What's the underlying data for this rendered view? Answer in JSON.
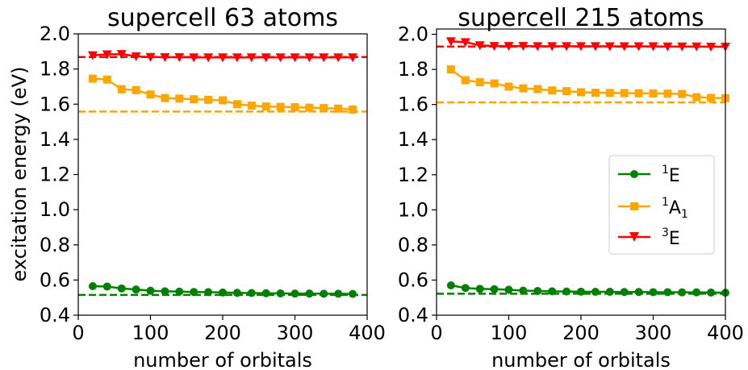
{
  "chart_data": [
    {
      "type": "line",
      "title": "supercell 63 atoms",
      "xlabel": "number of orbitals",
      "ylabel": "excitation energy (eV)",
      "xlim": [
        0,
        400
      ],
      "ylim": [
        0.4,
        2.0
      ],
      "xticks": [
        "0",
        "100",
        "200",
        "300",
        "400"
      ],
      "yticks": [
        "0.4",
        "0.6",
        "0.8",
        "1.0",
        "1.2",
        "1.4",
        "1.6",
        "1.8",
        "2.0"
      ],
      "grid": false,
      "x": [
        20,
        40,
        60,
        80,
        100,
        120,
        140,
        160,
        180,
        200,
        220,
        240,
        260,
        280,
        300,
        320,
        340,
        360,
        380
      ],
      "series": [
        {
          "name": "1E",
          "color": "#008000",
          "marker": "circle",
          "values": [
            0.565,
            0.563,
            0.552,
            0.546,
            0.539,
            0.536,
            0.534,
            0.532,
            0.531,
            0.529,
            0.527,
            0.526,
            0.525,
            0.524,
            0.523,
            0.523,
            0.522,
            0.522,
            0.521
          ],
          "reference": 0.515
        },
        {
          "name": "1A1",
          "color": "#ffa500",
          "marker": "square",
          "values": [
            1.745,
            1.74,
            1.685,
            1.68,
            1.655,
            1.635,
            1.632,
            1.628,
            1.625,
            1.622,
            1.6,
            1.592,
            1.587,
            1.585,
            1.583,
            1.58,
            1.578,
            1.575,
            1.57
          ],
          "reference": 1.558
        },
        {
          "name": "3E",
          "color": "#ff0000",
          "marker": "triangle-down",
          "values": [
            1.878,
            1.883,
            1.885,
            1.872,
            1.868,
            1.867,
            1.867,
            1.866,
            1.866,
            1.866,
            1.866,
            1.866,
            1.866,
            1.866,
            1.866,
            1.866,
            1.866,
            1.866,
            1.866
          ],
          "reference": 1.868
        }
      ]
    },
    {
      "type": "line",
      "title": "supercell 215 atoms",
      "xlabel": "number of orbitals",
      "ylabel": "",
      "xlim": [
        0,
        400
      ],
      "ylim": [
        0.4,
        2.03
      ],
      "xticks": [
        "0",
        "100",
        "200",
        "300",
        "400"
      ],
      "yticks": [
        "0.4",
        "0.6",
        "0.8",
        "1.0",
        "1.2",
        "1.4",
        "1.6",
        "1.8",
        "2.0"
      ],
      "grid": false,
      "legend": {
        "position": "center-right",
        "entries": [
          "1E",
          "1A1",
          "3E"
        ]
      },
      "x": [
        20,
        40,
        60,
        80,
        100,
        120,
        140,
        160,
        180,
        200,
        220,
        240,
        260,
        280,
        300,
        320,
        340,
        360,
        380,
        400
      ],
      "series": [
        {
          "name": "1E",
          "color": "#008000",
          "marker": "circle",
          "values": [
            0.57,
            0.555,
            0.55,
            0.548,
            0.545,
            0.54,
            0.538,
            0.536,
            0.535,
            0.534,
            0.533,
            0.533,
            0.532,
            0.532,
            0.531,
            0.531,
            0.53,
            0.53,
            0.529,
            0.528
          ],
          "reference": 0.522
        },
        {
          "name": "1A1",
          "color": "#ffa500",
          "marker": "square",
          "values": [
            1.8,
            1.738,
            1.727,
            1.72,
            1.702,
            1.692,
            1.688,
            1.68,
            1.676,
            1.67,
            1.667,
            1.666,
            1.665,
            1.664,
            1.663,
            1.662,
            1.66,
            1.642,
            1.638,
            1.636
          ],
          "reference": 1.612
        },
        {
          "name": "3E",
          "color": "#ff0000",
          "marker": "triangle-down",
          "values": [
            1.96,
            1.955,
            1.937,
            1.933,
            1.933,
            1.933,
            1.932,
            1.932,
            1.932,
            1.932,
            1.932,
            1.931,
            1.931,
            1.931,
            1.931,
            1.93,
            1.93,
            1.93,
            1.929,
            1.929
          ],
          "reference": 1.93
        }
      ]
    }
  ],
  "legend_labels": {
    "e1": {
      "sup": "1",
      "main": "E",
      "sub": ""
    },
    "a1": {
      "sup": "1",
      "main": "A",
      "sub": "1"
    },
    "e3": {
      "sup": "3",
      "main": "E",
      "sub": ""
    }
  }
}
